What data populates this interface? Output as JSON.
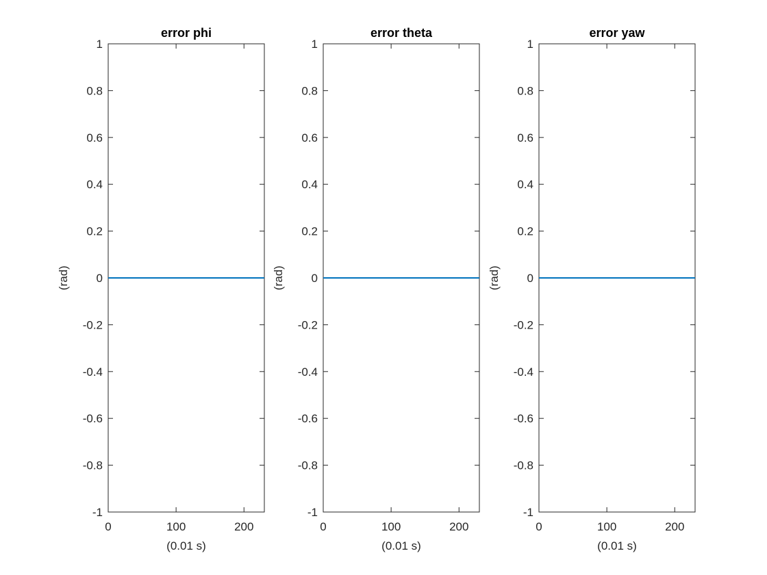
{
  "colors": {
    "series": "#0072BD",
    "axes": "#262626",
    "background": "#ffffff"
  },
  "chart_data": [
    {
      "type": "line",
      "title": "error phi",
      "xlabel": "(0.01 s)",
      "ylabel": "(rad)",
      "xlim": [
        0,
        230
      ],
      "ylim": [
        -1,
        1
      ],
      "xticks": [
        0,
        100,
        200
      ],
      "xtick_labels": [
        "0",
        "100",
        "200"
      ],
      "yticks": [
        -1,
        -0.8,
        -0.6,
        -0.4,
        -0.2,
        0,
        0.2,
        0.4,
        0.6,
        0.8,
        1
      ],
      "ytick_labels": [
        "-1",
        "-0.8",
        "-0.6",
        "-0.4",
        "-0.2",
        "0",
        "0.2",
        "0.4",
        "0.6",
        "0.8",
        "1"
      ],
      "grid": false,
      "series": [
        {
          "x": [
            0,
            230
          ],
          "y": [
            0,
            0
          ]
        }
      ]
    },
    {
      "type": "line",
      "title": "error theta",
      "xlabel": "(0.01 s)",
      "ylabel": "(rad)",
      "xlim": [
        0,
        230
      ],
      "ylim": [
        -1,
        1
      ],
      "xticks": [
        0,
        100,
        200
      ],
      "xtick_labels": [
        "0",
        "100",
        "200"
      ],
      "yticks": [
        -1,
        -0.8,
        -0.6,
        -0.4,
        -0.2,
        0,
        0.2,
        0.4,
        0.6,
        0.8,
        1
      ],
      "ytick_labels": [
        "-1",
        "-0.8",
        "-0.6",
        "-0.4",
        "-0.2",
        "0",
        "0.2",
        "0.4",
        "0.6",
        "0.8",
        "1"
      ],
      "grid": false,
      "series": [
        {
          "x": [
            0,
            230
          ],
          "y": [
            0,
            0
          ]
        }
      ]
    },
    {
      "type": "line",
      "title": "error yaw",
      "xlabel": "(0.01 s)",
      "ylabel": "(rad)",
      "xlim": [
        0,
        230
      ],
      "ylim": [
        -1,
        1
      ],
      "xticks": [
        0,
        100,
        200
      ],
      "xtick_labels": [
        "0",
        "100",
        "200"
      ],
      "yticks": [
        -1,
        -0.8,
        -0.6,
        -0.4,
        -0.2,
        0,
        0.2,
        0.4,
        0.6,
        0.8,
        1
      ],
      "ytick_labels": [
        "-1",
        "-0.8",
        "-0.6",
        "-0.4",
        "-0.2",
        "0",
        "0.2",
        "0.4",
        "0.6",
        "0.8",
        "1"
      ],
      "grid": false,
      "series": [
        {
          "x": [
            0,
            230
          ],
          "y": [
            0,
            0
          ]
        }
      ]
    }
  ]
}
